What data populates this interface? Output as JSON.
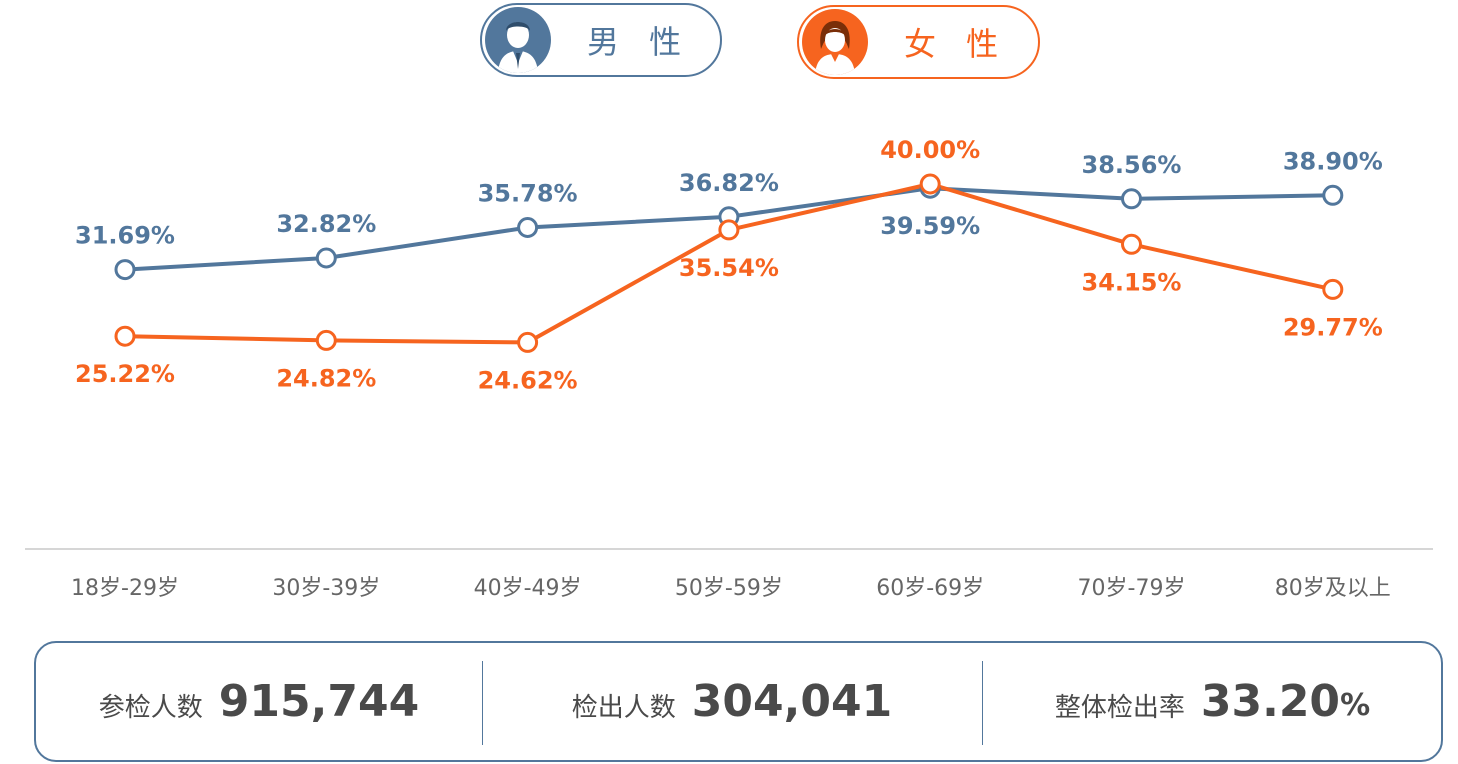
{
  "legend": {
    "male_label": "男 性",
    "female_label": "女 性"
  },
  "colors": {
    "male": "#52779c",
    "female": "#f6641f",
    "axis": "#d6d6d6",
    "tick_text": "#666666"
  },
  "chart_data": {
    "type": "line",
    "categories": [
      "18岁-29岁",
      "30岁-39岁",
      "40岁-49岁",
      "50岁-59岁",
      "60岁-69岁",
      "70岁-79岁",
      "80岁及以上"
    ],
    "series": [
      {
        "name": "男 性",
        "values": [
          31.69,
          32.82,
          35.78,
          36.82,
          39.59,
          38.56,
          38.9
        ],
        "labels": [
          "31.69%",
          "32.82%",
          "35.78%",
          "36.82%",
          "39.59%",
          "38.56%",
          "38.90%"
        ]
      },
      {
        "name": "女 性",
        "values": [
          25.22,
          24.82,
          24.62,
          35.54,
          40.0,
          34.15,
          29.77
        ],
        "labels": [
          "25.22%",
          "24.82%",
          "24.62%",
          "35.54%",
          "40.00%",
          "34.15%",
          "29.77%"
        ]
      }
    ],
    "unit": "%",
    "grid": false,
    "legend_position": "top"
  },
  "stats": [
    {
      "label": "参检人数",
      "value": "915,744",
      "unit": ""
    },
    {
      "label": "检出人数",
      "value": "304,041",
      "unit": ""
    },
    {
      "label": "整体检出率",
      "value": "33.20",
      "unit": "%"
    }
  ]
}
